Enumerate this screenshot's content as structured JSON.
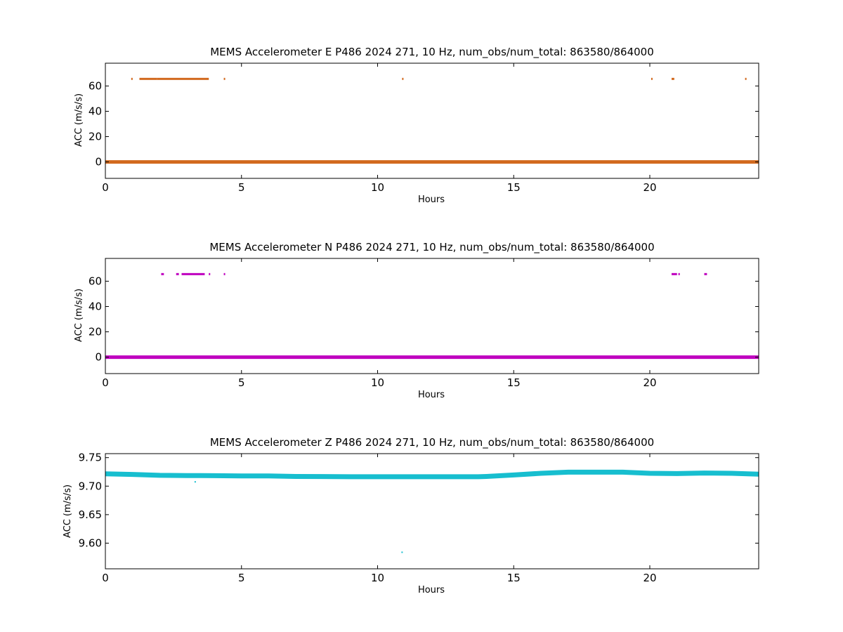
{
  "chart_data": [
    {
      "type": "scatter",
      "title": "MEMS Accelerometer E P486 2024 271, 10 Hz, num_obs/num_total: 863580/864000",
      "xlabel": "Hours",
      "ylabel": "ACC (m/s/s)",
      "xlim": [
        0,
        24
      ],
      "ylim": [
        -13,
        78
      ],
      "xticks": [
        0,
        5,
        10,
        15,
        20
      ],
      "yticks": [
        0,
        20,
        40,
        60
      ],
      "ytick_labels": [
        "0",
        "20",
        "40",
        "60"
      ],
      "grid": false,
      "color": "#d2691e",
      "series": [
        {
          "baseline": {
            "x_range": [
              0,
              24
            ],
            "y": 0
          },
          "outliers": [
            {
              "x_range": [
                0.95,
                1.0
              ],
              "y": 65.6
            },
            {
              "x_range": [
                1.25,
                1.9
              ],
              "y": 65.6
            },
            {
              "x_range": [
                1.9,
                3.8
              ],
              "y": 65.6
            },
            {
              "x_range": [
                4.35,
                4.4
              ],
              "y": 65.6
            },
            {
              "x_range": [
                10.9,
                10.93
              ],
              "y": 65.6
            },
            {
              "x_range": [
                20.05,
                20.08
              ],
              "y": 65.6
            },
            {
              "x_range": [
                20.8,
                20.9
              ],
              "y": 65.6
            },
            {
              "x_range": [
                23.5,
                23.53
              ],
              "y": 65.6
            }
          ]
        }
      ]
    },
    {
      "type": "scatter",
      "title": "MEMS Accelerometer N P486 2024 271, 10 Hz, num_obs/num_total: 863580/864000",
      "xlabel": "Hours",
      "ylabel": "ACC (m/s/s)",
      "xlim": [
        0,
        24
      ],
      "ylim": [
        -13,
        78
      ],
      "xticks": [
        0,
        5,
        10,
        15,
        20
      ],
      "yticks": [
        0,
        20,
        40,
        60
      ],
      "ytick_labels": [
        "0",
        "20",
        "40",
        "60"
      ],
      "grid": false,
      "color": "#bf00bf",
      "series": [
        {
          "baseline": {
            "x_range": [
              0,
              24
            ],
            "y": 0
          },
          "outliers": [
            {
              "x_range": [
                2.05,
                2.15
              ],
              "y": 65.6
            },
            {
              "x_range": [
                2.6,
                2.7
              ],
              "y": 65.6
            },
            {
              "x_range": [
                2.8,
                3.65
              ],
              "y": 65.6
            },
            {
              "x_range": [
                3.8,
                3.83
              ],
              "y": 65.6
            },
            {
              "x_range": [
                4.35,
                4.4
              ],
              "y": 65.6
            },
            {
              "x_range": [
                20.8,
                21.0
              ],
              "y": 65.6
            },
            {
              "x_range": [
                21.05,
                21.1
              ],
              "y": 65.6
            },
            {
              "x_range": [
                22.0,
                22.1
              ],
              "y": 65.6
            }
          ]
        }
      ]
    },
    {
      "type": "scatter",
      "title": "MEMS Accelerometer Z P486 2024 271, 10 Hz, num_obs/num_total: 863580/864000",
      "xlabel": "Hours",
      "ylabel": "ACC (m/s/s)",
      "xlim": [
        0,
        24
      ],
      "ylim": [
        9.555,
        9.757
      ],
      "xticks": [
        0,
        5,
        10,
        15,
        20
      ],
      "yticks": [
        9.6,
        9.65,
        9.7,
        9.75
      ],
      "ytick_labels": [
        "9.60",
        "9.65",
        "9.70",
        "9.75"
      ],
      "grid": false,
      "color": "#17becf",
      "series": [
        {
          "trend": {
            "x": [
              0,
              1,
              2,
              3,
              3.5,
              4,
              5,
              6,
              7,
              8,
              9,
              10,
              11,
              12,
              13,
              13.7,
              14,
              15,
              16,
              17,
              18,
              19,
              20,
              21,
              22,
              23,
              24
            ],
            "y": [
              9.7215,
              9.7205,
              9.719,
              9.7185,
              9.7185,
              9.7183,
              9.718,
              9.7178,
              9.717,
              9.7168,
              9.7165,
              9.7165,
              9.7165,
              9.7165,
              9.7165,
              9.7165,
              9.717,
              9.7195,
              9.7225,
              9.7245,
              9.7245,
              9.7245,
              9.7225,
              9.722,
              9.723,
              9.7225,
              9.721
            ]
          },
          "outliers": [
            {
              "x": 3.3,
              "y": 9.7075
            },
            {
              "x": 10.9,
              "y": 9.584
            }
          ]
        }
      ]
    }
  ]
}
